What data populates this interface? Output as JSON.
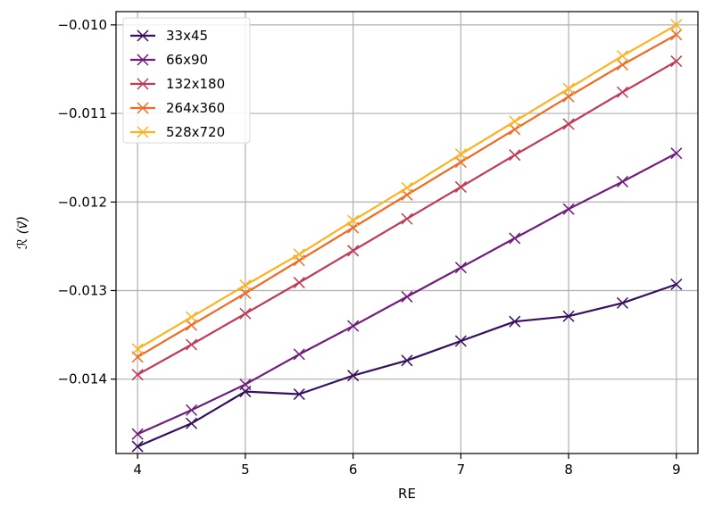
{
  "chart_data": {
    "type": "line",
    "title": "",
    "xlabel": "RE",
    "ylabel": "ℛ (v⃗)",
    "x": [
      4,
      4.5,
      5,
      5.5,
      6,
      6.5,
      7,
      7.5,
      8,
      8.5,
      9
    ],
    "xlim": [
      3.8,
      9.2
    ],
    "ylim": [
      -0.01484,
      -0.00985
    ],
    "xticks": [
      4,
      5,
      6,
      7,
      8,
      9
    ],
    "xtick_labels": [
      "4",
      "5",
      "6",
      "7",
      "8",
      "9"
    ],
    "yticks": [
      -0.01,
      -0.011,
      -0.012,
      -0.013,
      -0.014
    ],
    "ytick_labels": [
      "−0.010",
      "−0.011",
      "−0.012",
      "−0.013",
      "−0.014"
    ],
    "grid": true,
    "legend_position": "upper left",
    "marker": "x",
    "series": [
      {
        "name": "33x45",
        "color": "#360f60",
        "values": [
          -0.01476,
          -0.0145,
          -0.01414,
          -0.01417,
          -0.01396,
          -0.01379,
          -0.01357,
          -0.01335,
          -0.01329,
          -0.01314,
          -0.01293
        ]
      },
      {
        "name": "66x90",
        "color": "#711c7d",
        "values": [
          -0.01462,
          -0.01435,
          -0.01406,
          -0.01372,
          -0.0134,
          -0.01307,
          -0.01274,
          -0.01241,
          -0.01208,
          -0.01177,
          -0.01145
        ]
      },
      {
        "name": "132x180",
        "color": "#c03a53",
        "values": [
          -0.01395,
          -0.01361,
          -0.01326,
          -0.01291,
          -0.01255,
          -0.01219,
          -0.01183,
          -0.01147,
          -0.01112,
          -0.01076,
          -0.01041
        ]
      },
      {
        "name": "264x360",
        "color": "#ef6a25",
        "values": [
          -0.01375,
          -0.01339,
          -0.01303,
          -0.01266,
          -0.01229,
          -0.01192,
          -0.01155,
          -0.01118,
          -0.01081,
          -0.01045,
          -0.01011
        ]
      },
      {
        "name": "528x720",
        "color": "#fbb321",
        "values": [
          -0.01366,
          -0.0133,
          -0.01294,
          -0.01259,
          -0.01221,
          -0.01184,
          -0.01146,
          -0.01109,
          -0.01072,
          -0.01035,
          -0.01
        ]
      }
    ]
  }
}
